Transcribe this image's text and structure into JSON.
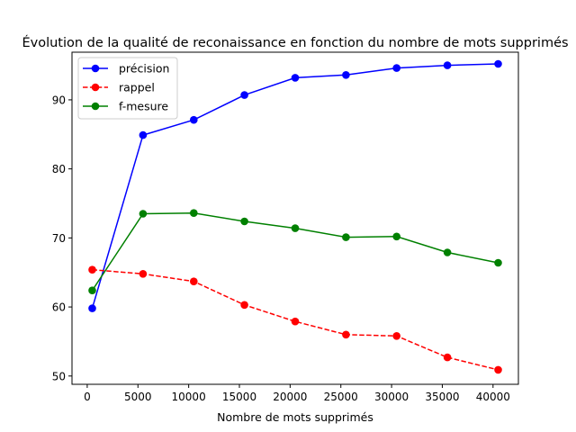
{
  "chart_data": {
    "type": "line",
    "title": "Évolution de la qualité de reconaissance en fonction du nombre de mots supprimés",
    "xlabel": "Nombre de mots supprimés",
    "ylabel": "",
    "xlim": [
      -1500,
      42500
    ],
    "ylim": [
      48.8,
      96.9
    ],
    "x_ticks": [
      0,
      5000,
      10000,
      15000,
      20000,
      25000,
      30000,
      35000,
      40000
    ],
    "y_ticks": [
      50,
      60,
      70,
      80,
      90
    ],
    "x": [
      500,
      5500,
      10500,
      15500,
      20500,
      25500,
      30500,
      35500,
      40500
    ],
    "series": [
      {
        "name": "précision",
        "color": "#0000ff",
        "linestyle": "solid",
        "marker": "circle",
        "values": [
          59.8,
          84.9,
          87.1,
          90.7,
          93.2,
          93.6,
          94.6,
          95.0,
          95.2
        ]
      },
      {
        "name": "rappel",
        "color": "#ff0000",
        "linestyle": "dashed",
        "marker": "circle",
        "values": [
          65.4,
          64.8,
          63.7,
          60.3,
          57.9,
          56.0,
          55.8,
          52.7,
          50.9
        ]
      },
      {
        "name": "f-mesure",
        "color": "#008000",
        "linestyle": "solid",
        "marker": "circle",
        "values": [
          62.4,
          73.5,
          73.6,
          72.4,
          71.4,
          70.1,
          70.2,
          67.9,
          66.4
        ]
      }
    ],
    "legend_position": "top-left",
    "grid": false
  }
}
